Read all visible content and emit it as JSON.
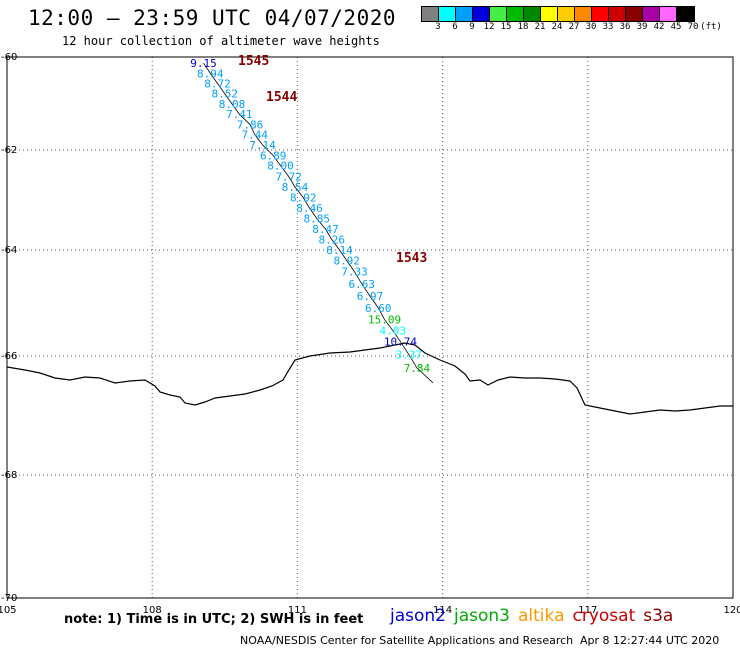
{
  "header": {
    "title": "12:00 – 23:59 UTC 04/07/2020",
    "subtitle": "12 hour collection of altimeter wave heights"
  },
  "legend": {
    "unit": "(ft)",
    "bins": [
      {
        "label": "3",
        "color": "#808080"
      },
      {
        "label": "6",
        "color": "#00ffff"
      },
      {
        "label": "9",
        "color": "#00a0ff"
      },
      {
        "label": "12",
        "color": "#0000dd"
      },
      {
        "label": "15",
        "color": "#44ee44"
      },
      {
        "label": "18",
        "color": "#00bb00"
      },
      {
        "label": "21",
        "color": "#008800"
      },
      {
        "label": "24",
        "color": "#ffff00"
      },
      {
        "label": "27",
        "color": "#ffcc00"
      },
      {
        "label": "30",
        "color": "#ff8800"
      },
      {
        "label": "33",
        "color": "#ff0000"
      },
      {
        "label": "36",
        "color": "#cc0000"
      },
      {
        "label": "39",
        "color": "#880000"
      },
      {
        "label": "42",
        "color": "#aa00aa"
      },
      {
        "label": "45",
        "color": "#ff66ff"
      },
      {
        "label": "70",
        "color": "#000000"
      }
    ]
  },
  "map": {
    "lon_range": [
      105,
      120
    ],
    "lat_range": [
      -70,
      -60
    ],
    "lon_ticks": [
      "105",
      "108",
      "111",
      "114",
      "117",
      "120"
    ],
    "lat_ticks": [
      "-60",
      "-62",
      "-64",
      "-66",
      "-68",
      "-70"
    ],
    "track_labels": [
      "1545",
      "1544",
      "1543"
    ],
    "observations": [
      {
        "value": "9.15",
        "lon": 109.06,
        "lat": -60.13,
        "color": "#0000cc"
      },
      {
        "value": "8.94",
        "lon": 109.2,
        "lat": -60.35,
        "color": "#00a0ff"
      },
      {
        "value": "8.72",
        "lon": 109.35,
        "lat": -60.57,
        "color": "#00a0ff"
      },
      {
        "value": "8.52",
        "lon": 109.5,
        "lat": -60.79,
        "color": "#00a0ff"
      },
      {
        "value": "8.08",
        "lon": 109.65,
        "lat": -61.01,
        "color": "#00a0ff"
      },
      {
        "value": "7.41",
        "lon": 109.8,
        "lat": -61.23,
        "color": "#00a0ff"
      },
      {
        "value": "7.86",
        "lon": 110.02,
        "lat": -61.45,
        "color": "#00a0ff"
      },
      {
        "value": "7.44",
        "lon": 110.12,
        "lat": -61.67,
        "color": "#00a0ff"
      },
      {
        "value": "7.14",
        "lon": 110.28,
        "lat": -61.89,
        "color": "#00a0ff"
      },
      {
        "value": "6.89",
        "lon": 110.5,
        "lat": -62.11,
        "color": "#00a0ff"
      },
      {
        "value": "8.00",
        "lon": 110.65,
        "lat": -62.31,
        "color": "#00a0ff"
      },
      {
        "value": "7.72",
        "lon": 110.82,
        "lat": -62.53,
        "color": "#00a0ff"
      },
      {
        "value": "8.54",
        "lon": 110.95,
        "lat": -62.74,
        "color": "#00a0ff"
      },
      {
        "value": "8.92",
        "lon": 111.12,
        "lat": -62.95,
        "color": "#00a0ff"
      },
      {
        "value": "8.46",
        "lon": 111.25,
        "lat": -63.16,
        "color": "#00a0ff"
      },
      {
        "value": "8.85",
        "lon": 111.4,
        "lat": -63.37,
        "color": "#00a0ff"
      },
      {
        "value": "8.47",
        "lon": 111.58,
        "lat": -63.58,
        "color": "#00a0ff"
      },
      {
        "value": "8.26",
        "lon": 111.71,
        "lat": -63.79,
        "color": "#00a0ff"
      },
      {
        "value": "8.14",
        "lon": 111.87,
        "lat": -64.0,
        "color": "#00a0ff"
      },
      {
        "value": "8.92",
        "lon": 112.02,
        "lat": -64.2,
        "color": "#00a0ff"
      },
      {
        "value": "7.33",
        "lon": 112.18,
        "lat": -64.41,
        "color": "#00a0ff"
      },
      {
        "value": "6.63",
        "lon": 112.33,
        "lat": -64.64,
        "color": "#00a0ff"
      },
      {
        "value": "6.97",
        "lon": 112.5,
        "lat": -64.87,
        "color": "#00a0ff"
      },
      {
        "value": "6.60",
        "lon": 112.67,
        "lat": -65.09,
        "color": "#00a0ff"
      },
      {
        "value": "15.09",
        "lon": 112.8,
        "lat": -65.31,
        "color": "#00bb00"
      },
      {
        "value": "4.03",
        "lon": 112.97,
        "lat": -65.52,
        "color": "#00ffff"
      },
      {
        "value": "10.74",
        "lon": 113.13,
        "lat": -65.73,
        "color": "#0000cc"
      },
      {
        "value": "3.37",
        "lon": 113.3,
        "lat": -65.97,
        "color": "#00ffff"
      },
      {
        "value": "7.84",
        "lon": 113.47,
        "lat": -66.2,
        "color": "#00bb00"
      }
    ]
  },
  "notes": {
    "text": "note: 1) Time is in UTC; 2) SWH is in feet",
    "satellites": [
      {
        "name": "jason2",
        "color": "#0000cc"
      },
      {
        "name": "jason3",
        "color": "#00aa00"
      },
      {
        "name": "altika",
        "color": "#ff9900"
      },
      {
        "name": "cryosat",
        "color": "#cc0000"
      },
      {
        "name": "s3a",
        "color": "#880000"
      }
    ],
    "credit": "NOAA/NESDIS Center for Satellite Applications and Research",
    "generated": "Apr  8 12:27:44 UTC 2020"
  }
}
